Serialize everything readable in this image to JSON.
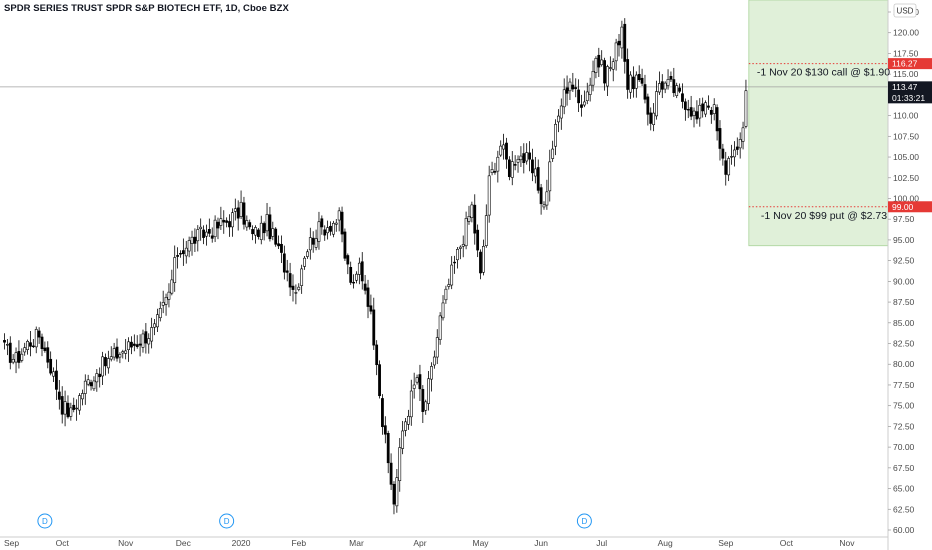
{
  "header": {
    "title": "SPDR SERIES TRUST SPDR S&P BIOTECH ETF, 1D, Cboe BZX",
    "currency": "USD"
  },
  "colors": {
    "up_fill": "#ffffff",
    "down_fill": "#000000",
    "candle_border": "#000000",
    "range_fill": "#e0f0d9",
    "range_border": "#a8d399",
    "marker_line": "#e53935",
    "price_line": "#a0a0a0",
    "dividend": "#2196f3"
  },
  "price_axis": {
    "min": 60.0,
    "max": 122.5,
    "ticks": [
      60.0,
      62.5,
      65.0,
      67.5,
      70.0,
      72.5,
      75.0,
      77.5,
      80.0,
      82.5,
      85.0,
      87.5,
      90.0,
      92.5,
      95.0,
      97.5,
      100.0,
      102.5,
      105.0,
      107.5,
      110.0,
      112.5,
      115.0,
      117.5,
      120.0,
      122.5
    ],
    "tick_labels": [
      "60.00",
      "62.50",
      "65.00",
      "67.50",
      "70.00",
      "72.50",
      "75.00",
      "77.50",
      "80.00",
      "82.50",
      "85.00",
      "87.50",
      "90.00",
      "92.50",
      "95.00",
      "97.50",
      "100.00",
      "102.50",
      "105.00",
      "107.50",
      "110.00",
      "112.50",
      "115.00",
      "117.50",
      "120.00",
      "122.50"
    ]
  },
  "time_axis": {
    "labels": [
      "Sep",
      "Oct",
      "Nov",
      "Dec",
      "2020",
      "Feb",
      "Mar",
      "Apr",
      "May",
      "Jun",
      "Jul",
      "Aug",
      "Sep",
      "Oct",
      "Nov"
    ],
    "label_bar_index": [
      -2,
      20,
      42,
      62,
      82,
      102,
      122,
      144,
      165,
      186,
      207,
      229,
      250,
      271,
      292
    ]
  },
  "last_price": {
    "value": 113.47,
    "label": "113.47",
    "countdown": "01:33:21"
  },
  "call_marker": {
    "value": 116.27,
    "label": "116.27",
    "note": "-1 Nov 20 $130 call @ $1.90"
  },
  "put_marker": {
    "value": 99.0,
    "label": "99.00",
    "note": "-1 Nov 20 $99 put @ $2.73"
  },
  "range_box": {
    "from_bar": 258,
    "to_bar": 305,
    "top": 122.5,
    "bottom": 94.3
  },
  "dividends": {
    "symbol": "D",
    "bar_index": [
      14,
      77,
      201
    ]
  },
  "chart_data": {
    "type": "candlestick",
    "title": "SPDR SERIES TRUST SPDR S&P BIOTECH ETF, 1D, Cboe BZX",
    "ylim": [
      60.0,
      122.5
    ],
    "x_unit": "daily bars (trading day index), 0 = early Sep 2019",
    "anchors": [
      [
        0,
        81.8
      ],
      [
        4,
        80.5
      ],
      [
        8,
        82.5
      ],
      [
        12,
        83.5
      ],
      [
        16,
        79.8
      ],
      [
        20,
        75.0
      ],
      [
        23,
        74.0
      ],
      [
        28,
        77.5
      ],
      [
        33,
        79.5
      ],
      [
        38,
        81.0
      ],
      [
        45,
        82.5
      ],
      [
        52,
        84.2
      ],
      [
        57,
        88.5
      ],
      [
        60,
        93.5
      ],
      [
        66,
        95.2
      ],
      [
        72,
        96.2
      ],
      [
        78,
        97.5
      ],
      [
        82,
        98.5
      ],
      [
        86,
        95.5
      ],
      [
        91,
        97.0
      ],
      [
        94,
        94.5
      ],
      [
        97,
        92.0
      ],
      [
        101,
        88.8
      ],
      [
        104,
        93.5
      ],
      [
        108,
        96.0
      ],
      [
        113,
        97.0
      ],
      [
        116,
        97.5
      ],
      [
        118,
        93.0
      ],
      [
        121,
        89.0
      ],
      [
        123,
        92.0
      ],
      [
        126,
        88.0
      ],
      [
        129,
        81.0
      ],
      [
        131,
        73.0
      ],
      [
        133,
        68.0
      ],
      [
        135,
        63.5
      ],
      [
        138,
        72.0
      ],
      [
        141,
        76.0
      ],
      [
        143,
        78.5
      ],
      [
        145,
        74.0
      ],
      [
        148,
        79.0
      ],
      [
        151,
        85.5
      ],
      [
        155,
        91.0
      ],
      [
        159,
        95.5
      ],
      [
        162,
        99.0
      ],
      [
        165,
        90.5
      ],
      [
        168,
        102.0
      ],
      [
        172,
        106.5
      ],
      [
        175,
        103.5
      ],
      [
        178,
        105.5
      ],
      [
        181,
        104.5
      ],
      [
        184,
        102.5
      ],
      [
        187,
        99.0
      ],
      [
        190,
        106.5
      ],
      [
        193,
        111.5
      ],
      [
        196,
        114.5
      ],
      [
        199,
        111.5
      ],
      [
        202,
        113.0
      ],
      [
        205,
        117.0
      ],
      [
        208,
        115.0
      ],
      [
        211,
        116.5
      ],
      [
        214,
        121.0
      ],
      [
        216,
        113.5
      ],
      [
        219,
        114.5
      ],
      [
        222,
        112.0
      ],
      [
        224,
        109.5
      ],
      [
        227,
        114.0
      ],
      [
        231,
        113.5
      ],
      [
        235,
        112.0
      ],
      [
        237,
        111.5
      ],
      [
        240,
        109.5
      ],
      [
        243,
        112.0
      ],
      [
        246,
        110.5
      ],
      [
        248,
        105.5
      ],
      [
        250,
        103.5
      ],
      [
        252,
        106.0
      ],
      [
        254,
        105.0
      ],
      [
        256,
        109.0
      ],
      [
        257,
        113.0
      ]
    ]
  }
}
